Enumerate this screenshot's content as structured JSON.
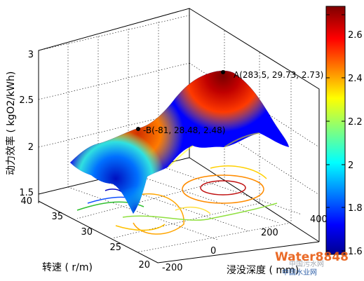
{
  "chart_data": {
    "type": "surface3d",
    "title": "",
    "axes": {
      "x": {
        "label": "浸没深度 ( mm)",
        "ticks": [
          "-200",
          "0",
          "200",
          "400"
        ],
        "lim": [
          -200,
          400
        ]
      },
      "y": {
        "label": "转速 ( r/m)",
        "ticks": [
          "20",
          "25",
          "30",
          "35",
          "40"
        ],
        "lim": [
          20,
          40
        ]
      },
      "z": {
        "label": "动力效率 ( kgO2/kWh)",
        "ticks": [
          "1.5",
          "2",
          "2.5",
          "3"
        ],
        "lim": [
          1.5,
          3
        ]
      }
    },
    "colorbar": {
      "ticks": [
        "1.6",
        "1.8",
        "2",
        "2.2",
        "2.4",
        "2.6"
      ],
      "range": [
        1.55,
        2.73
      ],
      "colormap": "jet"
    },
    "annotations": [
      {
        "id": "A",
        "text": "A(283.5, 29.73, 2.73)",
        "x": 283.5,
        "y": 29.73,
        "z": 2.73
      },
      {
        "id": "B",
        "text": "-B(-81, 28.48, 2.48)",
        "x": -81,
        "y": 28.48,
        "z": 2.48
      }
    ],
    "grid": true,
    "contours_on_floor": true
  },
  "watermark": {
    "brand": "Water8848",
    "sub": "中国水业网",
    "mark": "中国污水网"
  }
}
